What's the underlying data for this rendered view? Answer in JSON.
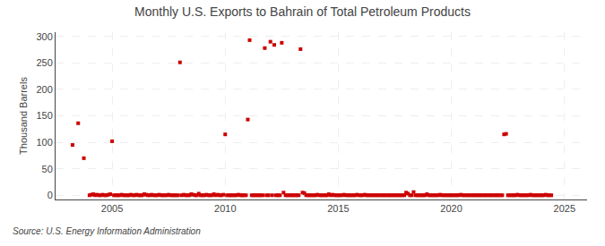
{
  "chart_data": {
    "type": "scatter",
    "title": "Monthly U.S. Exports to Bahrain of Total Petroleum Products",
    "ylabel": "Thousand Barrels",
    "annotation": "Source: U.S. Energy Information Administration",
    "color": "#cc0000",
    "marker": "square",
    "grid": true,
    "xlim": [
      2002.5,
      2026
    ],
    "ylim": [
      -8,
      308
    ],
    "xticks": [
      2005,
      2010,
      2015,
      2020,
      2025
    ],
    "yticks": [
      0,
      50,
      100,
      150,
      200,
      250,
      300
    ],
    "x": [
      2003.25,
      2003.5,
      2003.75,
      2004.0,
      2004.08,
      2004.17,
      2004.25,
      2004.33,
      2004.42,
      2004.5,
      2004.58,
      2004.67,
      2004.75,
      2004.83,
      2004.92,
      2005.0,
      2005.08,
      2005.17,
      2005.25,
      2005.33,
      2005.42,
      2005.5,
      2005.58,
      2005.67,
      2005.75,
      2005.83,
      2005.92,
      2006.0,
      2006.08,
      2006.17,
      2006.25,
      2006.33,
      2006.42,
      2006.5,
      2006.58,
      2006.67,
      2006.75,
      2006.83,
      2006.92,
      2007.0,
      2007.08,
      2007.17,
      2007.25,
      2007.33,
      2007.42,
      2007.5,
      2007.58,
      2007.67,
      2007.75,
      2007.83,
      2007.92,
      2008.0,
      2008.08,
      2008.17,
      2008.25,
      2008.33,
      2008.42,
      2008.5,
      2008.58,
      2008.67,
      2008.75,
      2008.83,
      2008.92,
      2009.0,
      2009.08,
      2009.17,
      2009.25,
      2009.33,
      2009.42,
      2009.5,
      2009.58,
      2009.67,
      2009.75,
      2009.83,
      2009.92,
      2010.0,
      2010.08,
      2010.17,
      2010.25,
      2010.33,
      2010.42,
      2010.5,
      2010.58,
      2010.67,
      2010.75,
      2010.83,
      2010.92,
      2011.0,
      2011.08,
      2011.17,
      2011.25,
      2011.33,
      2011.42,
      2011.5,
      2011.58,
      2011.67,
      2011.75,
      2011.83,
      2011.92,
      2012.0,
      2012.08,
      2012.17,
      2012.25,
      2012.33,
      2012.42,
      2012.5,
      2012.58,
      2012.67,
      2012.75,
      2012.83,
      2012.92,
      2013.0,
      2013.08,
      2013.17,
      2013.25,
      2013.33,
      2013.42,
      2013.5,
      2013.58,
      2013.67,
      2013.75,
      2013.83,
      2013.92,
      2014.0,
      2014.08,
      2014.17,
      2014.25,
      2014.33,
      2014.42,
      2014.5,
      2014.58,
      2014.67,
      2014.75,
      2014.83,
      2014.92,
      2015.0,
      2015.08,
      2015.17,
      2015.25,
      2015.33,
      2015.42,
      2015.5,
      2015.58,
      2015.67,
      2015.75,
      2015.83,
      2015.92,
      2016.0,
      2016.08,
      2016.17,
      2016.25,
      2016.33,
      2016.42,
      2016.5,
      2016.58,
      2016.67,
      2016.75,
      2016.83,
      2016.92,
      2017.0,
      2017.08,
      2017.17,
      2017.25,
      2017.33,
      2017.42,
      2017.5,
      2017.58,
      2017.67,
      2017.75,
      2017.83,
      2017.92,
      2018.0,
      2018.08,
      2018.17,
      2018.25,
      2018.33,
      2018.42,
      2018.5,
      2018.58,
      2018.67,
      2018.75,
      2018.83,
      2018.92,
      2019.0,
      2019.08,
      2019.17,
      2019.25,
      2019.33,
      2019.42,
      2019.5,
      2019.58,
      2019.67,
      2019.75,
      2019.83,
      2019.92,
      2020.0,
      2020.08,
      2020.17,
      2020.25,
      2020.33,
      2020.42,
      2020.5,
      2020.58,
      2020.67,
      2020.75,
      2020.83,
      2020.92,
      2021.0,
      2021.08,
      2021.17,
      2021.25,
      2021.33,
      2021.42,
      2021.5,
      2021.58,
      2021.67,
      2021.75,
      2021.83,
      2021.92,
      2022.0,
      2022.08,
      2022.17,
      2022.25,
      2022.33,
      2022.42,
      2022.5,
      2022.58,
      2022.67,
      2022.75,
      2022.83,
      2022.92,
      2023.0,
      2023.08,
      2023.17,
      2023.25,
      2023.33,
      2023.42,
      2023.5,
      2023.58,
      2023.67,
      2023.75,
      2023.83,
      2023.92,
      2024.0,
      2024.08,
      2024.17,
      2024.25,
      2024.33,
      2024.42
    ],
    "values": [
      95,
      136,
      70,
      0,
      1,
      2,
      0,
      1,
      0,
      0,
      1,
      0,
      0,
      1,
      2,
      102,
      0,
      0,
      0,
      0,
      1,
      0,
      0,
      0,
      0,
      1,
      0,
      0,
      1,
      0,
      0,
      0,
      2,
      1,
      0,
      0,
      1,
      0,
      0,
      0,
      1,
      0,
      0,
      0,
      0,
      1,
      0,
      0,
      0,
      0,
      0,
      251,
      0,
      1,
      0,
      0,
      0,
      2,
      1,
      0,
      0,
      3,
      0,
      0,
      0,
      1,
      0,
      0,
      0,
      2,
      0,
      1,
      0,
      0,
      1,
      115,
      0,
      0,
      0,
      0,
      0,
      0,
      1,
      0,
      0,
      0,
      0,
      143,
      293,
      0,
      0,
      0,
      0,
      0,
      0,
      0,
      278,
      0,
      0,
      290,
      0,
      284,
      0,
      0,
      0,
      288,
      5,
      0,
      0,
      0,
      0,
      0,
      0,
      0,
      0,
      276,
      5,
      4,
      0,
      0,
      0,
      0,
      0,
      0,
      1,
      0,
      0,
      0,
      0,
      0,
      2,
      0,
      1,
      0,
      0,
      0,
      0,
      0,
      1,
      0,
      0,
      0,
      0,
      0,
      0,
      1,
      0,
      0,
      0,
      1,
      0,
      0,
      0,
      0,
      0,
      0,
      0,
      0,
      0,
      0,
      0,
      0,
      0,
      0,
      0,
      0,
      0,
      0,
      0,
      0,
      0,
      5,
      3,
      0,
      0,
      6,
      0,
      0,
      0,
      0,
      0,
      0,
      2,
      0,
      0,
      0,
      0,
      0,
      0,
      1,
      0,
      0,
      0,
      0,
      0,
      0,
      0,
      0,
      0,
      0,
      1,
      0,
      0,
      0,
      0,
      0,
      0,
      0,
      0,
      0,
      0,
      0,
      0,
      0,
      0,
      0,
      0,
      0,
      0,
      0,
      0,
      0,
      0,
      115,
      116,
      0,
      0,
      0,
      0,
      0,
      1,
      0,
      0,
      0,
      0,
      0,
      0,
      1,
      0,
      0,
      0,
      0,
      0,
      0,
      0,
      1,
      0,
      0,
      0
    ]
  }
}
